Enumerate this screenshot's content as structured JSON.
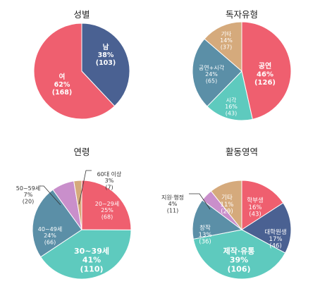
{
  "palette": {
    "navy": "#4a6192",
    "coral": "#ef5f6f",
    "teal": "#5ecabe",
    "slate": "#5b8fa7",
    "tan": "#d5aa7c",
    "lilac": "#c98fcb"
  },
  "chart_data": [
    {
      "id": "gender",
      "type": "pie",
      "title": "성별",
      "slices": [
        {
          "name": "남",
          "percent": "38%",
          "count": "(103)",
          "value": 103,
          "color": "#4a6192",
          "label_color": "#ffffff"
        },
        {
          "name": "여",
          "percent": "62%",
          "count": "(168)",
          "value": 168,
          "color": "#ef5f6f",
          "label_color": "#ffffff"
        }
      ]
    },
    {
      "id": "audience",
      "type": "pie",
      "title": "독자유형",
      "slices": [
        {
          "name": "공연",
          "percent": "46%",
          "count": "(126)",
          "value": 126,
          "color": "#ef5f6f",
          "label_color": "#ffffff"
        },
        {
          "name": "시각",
          "percent": "16%",
          "count": "(43)",
          "value": 43,
          "color": "#5ecabe",
          "label_color": "#ffffff"
        },
        {
          "name": "공연+시각",
          "percent": "24%",
          "count": "(65)",
          "value": 65,
          "color": "#5b8fa7",
          "label_color": "#ffffff"
        },
        {
          "name": "기타",
          "percent": "14%",
          "count": "(37)",
          "value": 37,
          "color": "#d5aa7c",
          "label_color": "#ffffff"
        }
      ]
    },
    {
      "id": "age",
      "type": "pie",
      "title": "연령",
      "slices": [
        {
          "name": "20~29세",
          "percent": "25%",
          "count": "(68)",
          "value": 68,
          "color": "#ef5f6f",
          "label_color": "#ffffff"
        },
        {
          "name": "30~39세",
          "percent": "41%",
          "count": "(110)",
          "value": 110,
          "color": "#5ecabe",
          "label_color": "#ffffff"
        },
        {
          "name": "40~49세",
          "percent": "24%",
          "count": "(66)",
          "value": 66,
          "color": "#5b8fa7",
          "label_color": "#ffffff"
        },
        {
          "name": "50~59세",
          "percent": "7%",
          "count": "(20)",
          "value": 20,
          "color": "#c98fcb",
          "label_color": "#333333"
        },
        {
          "name": "60대 이상",
          "percent": "3%",
          "count": "(7)",
          "value": 7,
          "color": "#d5aa7c",
          "label_color": "#333333"
        }
      ]
    },
    {
      "id": "activity",
      "type": "pie",
      "title": "활동영역",
      "slices": [
        {
          "name": "학부생",
          "percent": "16%",
          "count": "(43)",
          "value": 43,
          "color": "#ef5f6f",
          "label_color": "#ffffff"
        },
        {
          "name": "대학원생",
          "percent": "17%",
          "count": "(46)",
          "value": 46,
          "color": "#4a6192",
          "label_color": "#ffffff"
        },
        {
          "name": "제작·유통",
          "percent": "39%",
          "count": "(106)",
          "value": 106,
          "color": "#5ecabe",
          "label_color": "#ffffff"
        },
        {
          "name": "창작",
          "percent": "13%",
          "count": "(36)",
          "value": 36,
          "color": "#5b8fa7",
          "label_color": "#ffffff"
        },
        {
          "name": "지원·행정",
          "percent": "4%",
          "count": "(11)",
          "value": 11,
          "color": "#c98fcb",
          "label_color": "#333333"
        },
        {
          "name": "기타",
          "percent": "11%",
          "count": "(29)",
          "value": 29,
          "color": "#d5aa7c",
          "label_color": "#ffffff"
        }
      ]
    }
  ]
}
